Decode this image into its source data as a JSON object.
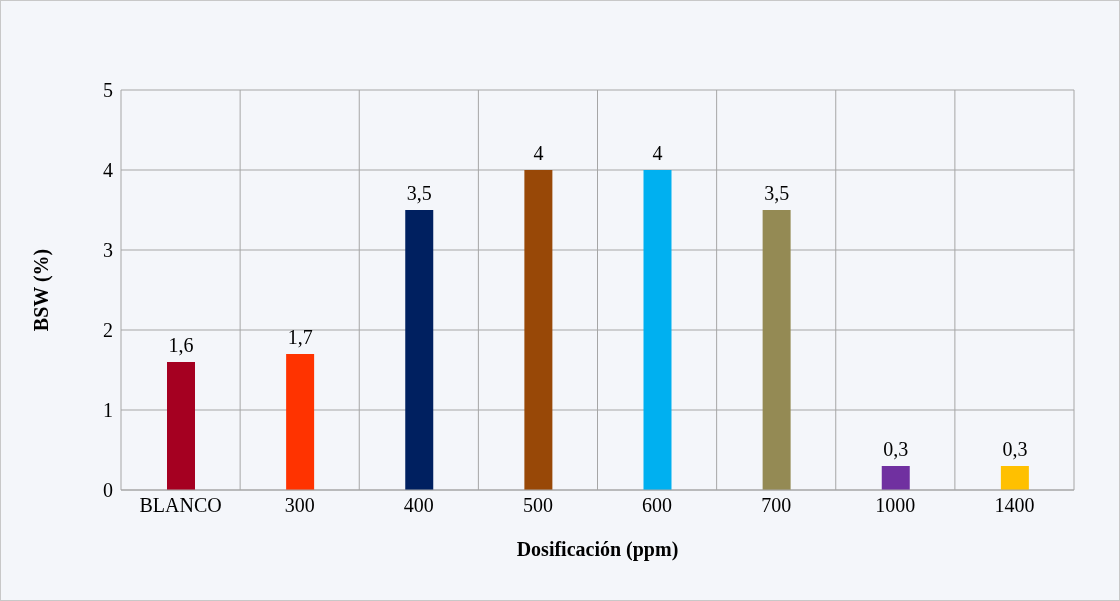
{
  "chart_data": {
    "type": "bar",
    "xlabel": "Dosificación (ppm)",
    "ylabel": "BSW (%)",
    "categories": [
      "BLANCO",
      "300",
      "400",
      "500",
      "600",
      "700",
      "1000",
      "1400"
    ],
    "values": [
      1.6,
      1.7,
      3.5,
      4,
      4,
      3.5,
      0.3,
      0.3
    ],
    "colors": [
      "#a50021",
      "#ff3300",
      "#002060",
      "#984807",
      "#00b0f0",
      "#948a54",
      "#7030a0",
      "#ffc000"
    ],
    "value_labels": [
      "1,6",
      "1,7",
      "3,5",
      "4",
      "4",
      "3,5",
      "0,3",
      "0,3"
    ],
    "ylim": [
      0,
      5
    ],
    "yticks": [
      0,
      1,
      2,
      3,
      4,
      5
    ],
    "grid": true
  }
}
